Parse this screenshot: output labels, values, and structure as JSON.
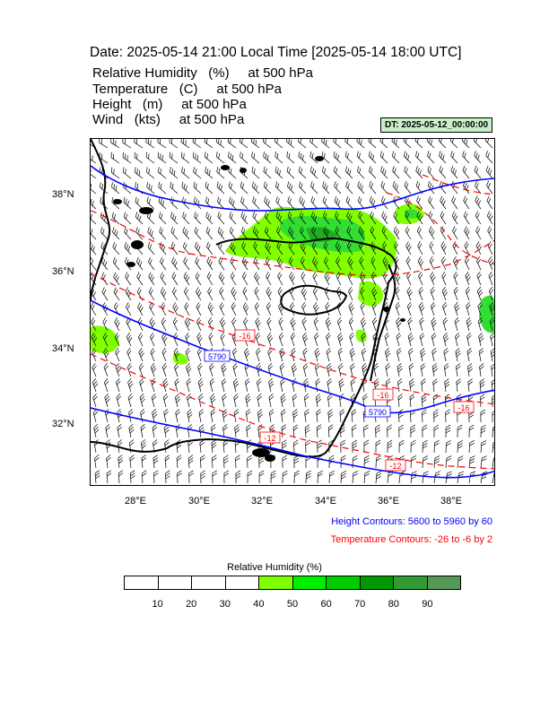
{
  "header": {
    "title": "Date: 2025-05-14  21:00 Local Time [2025-05-14  18:00 UTC]",
    "fields": [
      {
        "name": "Relative Humidity",
        "unit": "(%)",
        "level": "at   500 hPa"
      },
      {
        "name": "Temperature",
        "unit": "(C)",
        "level": "at   500 hPa"
      },
      {
        "name": "Height",
        "unit": "(m)",
        "level": "at   500 hPa"
      },
      {
        "name": "Wind",
        "unit": "(kts)",
        "level": "at   500 hPa"
      }
    ],
    "dt_badge": "DT: 2025-05-12_00:00:00"
  },
  "map": {
    "lon_range": [
      26.7,
      39.4
    ],
    "lat_range": [
      30.4,
      39.5
    ],
    "lon_ticks": [
      "28°E",
      "30°E",
      "32°E",
      "34°E",
      "36°E",
      "38°E"
    ],
    "lat_ticks": [
      "38°N",
      "36°N",
      "34°N",
      "32°N"
    ],
    "height_contour_labels": [
      "5790",
      "5790"
    ],
    "temperature_contour_labels": [
      "-16",
      "-16",
      "-12",
      "-16",
      "-12"
    ]
  },
  "legend": {
    "height_contours": "Height Contours: 5600 to 5960 by 60",
    "temperature_contours": "Temperature Contours: -26 to -6 by 2",
    "colorbar_title": "Relative Humidity  (%)",
    "colorbar_colors": [
      "#ffffff",
      "#ffffff",
      "#ffffff",
      "#ffffff",
      "#80ff00",
      "#00ee00",
      "#00cc00",
      "#009900",
      "#339933",
      "#559955"
    ],
    "colorbar_ticks": [
      "10",
      "20",
      "30",
      "40",
      "50",
      "60",
      "70",
      "80",
      "90"
    ]
  },
  "colors": {
    "height": "#0000ff",
    "temperature": "#ff0000",
    "humidity_light": "#80ff00",
    "humidity_mid": "#33dd33",
    "humidity_dark": "#22aa22",
    "coast": "#000000"
  }
}
